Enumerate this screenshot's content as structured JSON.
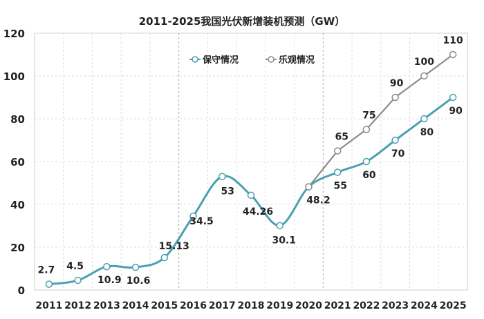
{
  "chart_data": {
    "type": "line",
    "title": "2011-2025我国光伏新增装机预测（GW）",
    "categories": [
      "2011",
      "2012",
      "2013",
      "2014",
      "2015",
      "2016",
      "2017",
      "2018",
      "2019",
      "2020",
      "2021",
      "2022",
      "2023",
      "2024",
      "2025"
    ],
    "ylim": [
      0,
      120
    ],
    "yticks": [
      0,
      20,
      40,
      60,
      80,
      100,
      120
    ],
    "grid": true,
    "legend_position": "top-center",
    "series": [
      {
        "name": "保守情况",
        "color": "#4a9fb3",
        "smooth": true,
        "values": [
          2.7,
          4.5,
          10.9,
          10.6,
          15.13,
          34.5,
          53,
          44.26,
          30.1,
          48.2,
          55,
          60,
          70,
          80,
          90
        ],
        "labels": [
          "2.7",
          "4.5",
          "10.9",
          "10.6",
          "15.13",
          "34.5",
          "53",
          "44.26",
          "30.1",
          "48.2",
          "55",
          "60",
          "70",
          "80",
          "90"
        ]
      },
      {
        "name": "乐观情况",
        "color": "#8c8c8c",
        "smooth": false,
        "values": [
          null,
          null,
          null,
          null,
          null,
          null,
          null,
          null,
          null,
          48.2,
          65,
          75,
          90,
          100,
          110
        ],
        "labels": [
          "",
          "",
          "",
          "",
          "",
          "",
          "",
          "",
          "",
          "",
          "65",
          "75",
          "90",
          "100",
          "110"
        ]
      }
    ]
  }
}
